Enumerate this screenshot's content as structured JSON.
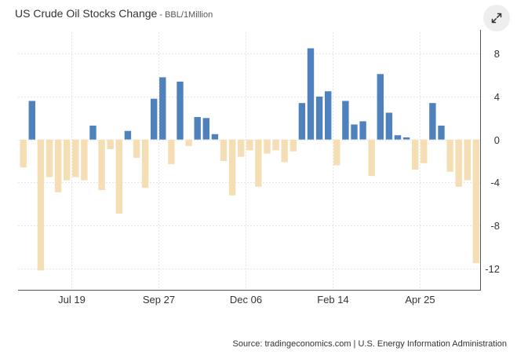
{
  "header": {
    "title": "US Crude Oil Stocks Change",
    "separator": " - ",
    "unit": "BBL/1Million"
  },
  "expand_button": {
    "icon": "expand-arrows-icon"
  },
  "source_text": "Source: tradingeconomics.com | U.S. Energy Information Administration",
  "colors": {
    "positive": "#4f81bd",
    "negative": "#f5deb3",
    "grid": "#e6e6e6",
    "axis": "#555555"
  },
  "chart_data": {
    "type": "bar",
    "title": "US Crude Oil Stocks Change",
    "ylabel": "BBL/1Million",
    "xlabel": "",
    "ylim": [
      -14,
      10
    ],
    "yticks": [
      8,
      4,
      0,
      -4,
      -8,
      -12
    ],
    "grid": true,
    "x_tick_labels": [
      {
        "label": "Jul 19",
        "after_bar": 5
      },
      {
        "label": "Sep 27",
        "after_bar": 15
      },
      {
        "label": "Dec 06",
        "after_bar": 25
      },
      {
        "label": "Feb 14",
        "after_bar": 35
      },
      {
        "label": "Apr 25",
        "after_bar": 45
      }
    ],
    "values": [
      -2.6,
      3.6,
      -12.2,
      -3.5,
      -4.9,
      -3.8,
      -3.5,
      -3.8,
      1.3,
      -4.7,
      -0.9,
      -6.9,
      0.8,
      -1.7,
      -4.5,
      3.8,
      5.8,
      -2.3,
      5.4,
      -0.6,
      2.1,
      2.0,
      0.5,
      -2.0,
      -5.2,
      -1.6,
      -1.0,
      -4.4,
      -1.3,
      -1.0,
      -2.1,
      -1.1,
      3.4,
      8.5,
      4.0,
      4.5,
      -2.4,
      3.6,
      1.4,
      1.7,
      -3.4,
      6.1,
      2.5,
      0.4,
      0.2,
      -2.8,
      -2.2,
      3.4,
      1.3,
      -3.0,
      -4.4,
      -3.8,
      -11.5
    ]
  }
}
